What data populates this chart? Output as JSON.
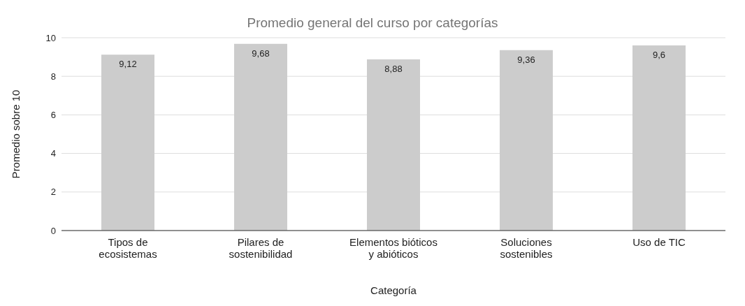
{
  "chart_data": {
    "type": "bar",
    "title": "Promedio general del curso por categorías",
    "xlabel": "Categoría",
    "ylabel": "Promedio sobre 10",
    "categories": [
      "Tipos de ecosistemas",
      "Pilares de sostenibilidad",
      "Elementos bióticos y abióticos",
      "Soluciones sostenibles",
      "Uso de TIC"
    ],
    "values": [
      9.12,
      9.68,
      8.88,
      9.36,
      9.6
    ],
    "value_labels": [
      "9,12",
      "9,68",
      "8,88",
      "9,36",
      "9,6"
    ],
    "color": "#cccccc",
    "ylim": [
      0,
      10
    ],
    "yticks": [
      0,
      2,
      4,
      6,
      8,
      10
    ],
    "grid": "y"
  }
}
